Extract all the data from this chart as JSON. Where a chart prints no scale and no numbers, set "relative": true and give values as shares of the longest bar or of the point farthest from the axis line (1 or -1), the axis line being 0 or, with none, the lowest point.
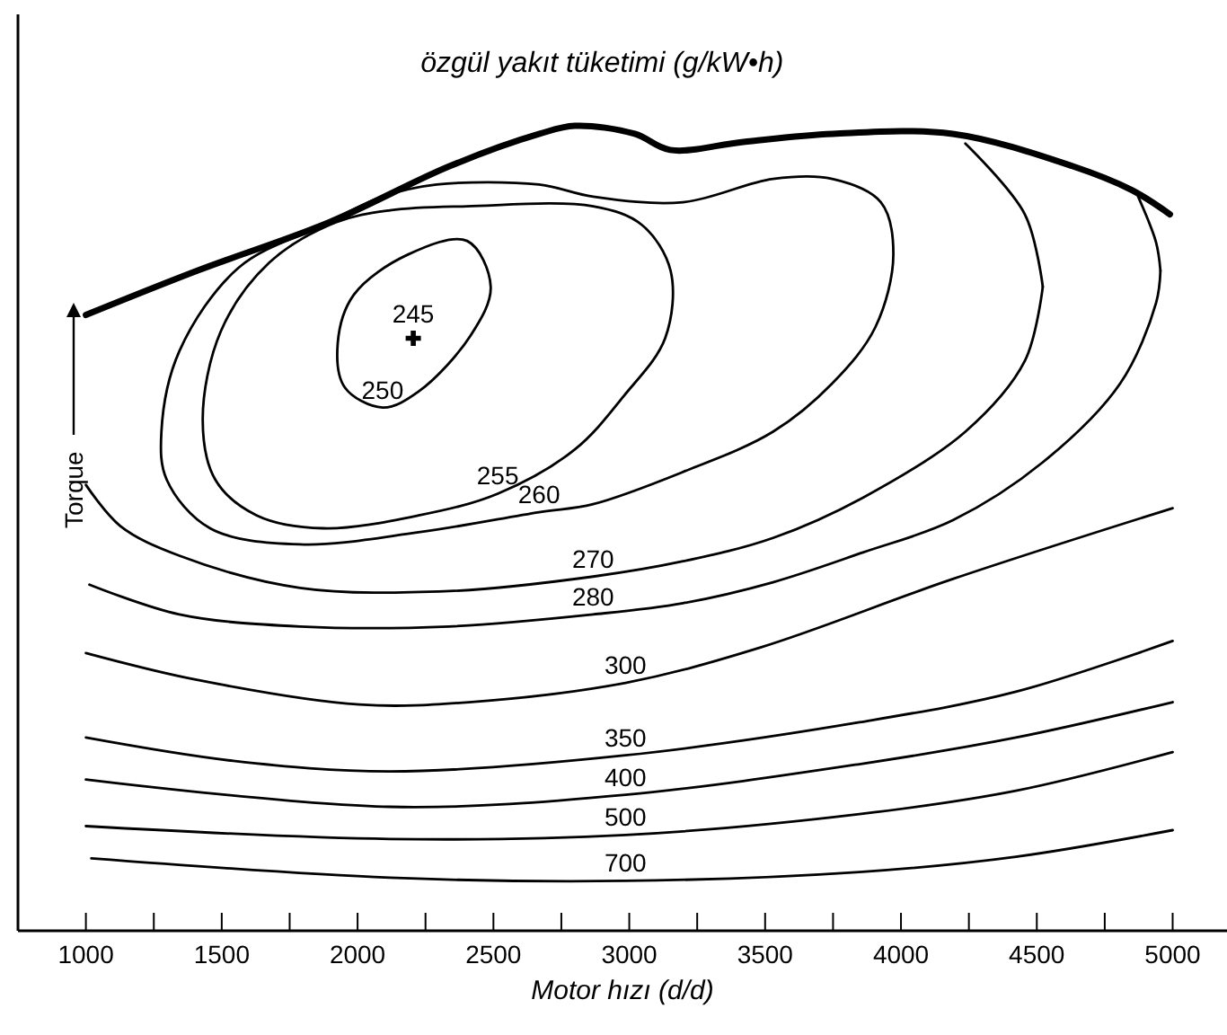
{
  "chart_data": {
    "type": "line",
    "title": "özgül yakıt tüketimi (g/kW•h)",
    "xlabel": "Motor hızı (d/d)",
    "ylabel": "Torque",
    "relative": true,
    "grid": false,
    "legend": false,
    "line_style": "solid",
    "marker": "none",
    "xlim": [
      750,
      5200
    ],
    "xticks": [
      1000,
      {
        "value": 1250,
        "label": null
      },
      1500,
      {
        "value": 1750,
        "label": null
      },
      2000,
      {
        "value": 2250,
        "label": null
      },
      2500,
      {
        "value": 2750,
        "label": null
      },
      3000,
      {
        "value": 3250,
        "label": null
      },
      3500,
      {
        "value": 3750,
        "label": null
      },
      4000,
      {
        "value": 4250,
        "label": null
      },
      4500,
      {
        "value": 4750,
        "label": null
      },
      5000
    ],
    "annotations": [
      "250",
      "255",
      "260"
    ],
    "series": [
      {
        "color": "#000000",
        "x": [
          1000,
          1410,
          1895,
          2340,
          2670,
          2800,
          3020,
          3150,
          3420,
          3750,
          4190,
          4630,
          4850,
          4990
        ],
        "values": [
          0.765,
          0.82,
          0.88,
          0.95,
          0.99,
          1.0,
          0.99,
          0.97,
          0.98,
          0.99,
          0.99,
          0.95,
          0.92,
          0.89
        ]
      },
      {
        "name": "270",
        "color": "#000000",
        "x": [
          1000,
          1126,
          1344,
          1788,
          2337,
          2867,
          3198,
          3529,
          3860,
          4237,
          4456,
          4522
        ],
        "values": [
          0.554,
          0.503,
          0.466,
          0.426,
          0.422,
          0.44,
          0.459,
          0.488,
          0.538,
          0.62,
          0.708,
          0.8
        ]
      },
      {
        "color": "#000000",
        "x": [
          4237,
          4456,
          4522
        ],
        "values": [
          0.978,
          0.89,
          0.8
        ]
      },
      {
        "name": "280",
        "color": "#000000",
        "x": [
          1013,
          1344,
          1788,
          2337,
          2867,
          3198,
          3529,
          3860,
          4191,
          4522,
          4807,
          4939,
          4955
        ],
        "values": [
          0.43,
          0.393,
          0.378,
          0.378,
          0.393,
          0.407,
          0.433,
          0.47,
          0.51,
          0.582,
          0.68,
          0.78,
          0.82
        ]
      },
      {
        "color": "#000000",
        "x": [
          4873,
          4939,
          4955
        ],
        "values": [
          0.912,
          0.855,
          0.82
        ]
      },
      {
        "name": "300",
        "color": "#000000",
        "x": [
          1000,
          1404,
          2006,
          2410,
          2986,
          3483,
          4191,
          5000
        ],
        "values": [
          0.345,
          0.312,
          0.281,
          0.284,
          0.308,
          0.352,
          0.437,
          0.525
        ]
      },
      {
        "name": "350",
        "color": "#000000",
        "x": [
          1000,
          1543,
          2119,
          2986,
          3847,
          4423,
          5000
        ],
        "values": [
          0.24,
          0.211,
          0.198,
          0.218,
          0.259,
          0.297,
          0.36
        ]
      },
      {
        "name": "400",
        "color": "#000000",
        "x": [
          1000,
          2119,
          2986,
          3847,
          4423,
          5000
        ],
        "values": [
          0.188,
          0.154,
          0.169,
          0.207,
          0.24,
          0.284
        ]
      },
      {
        "name": "500",
        "color": "#000000",
        "x": [
          1000,
          2119,
          2986,
          3847,
          4423,
          5000
        ],
        "values": [
          0.13,
          0.114,
          0.119,
          0.145,
          0.174,
          0.222
        ]
      },
      {
        "name": "700",
        "color": "#000000",
        "x": [
          1020,
          2119,
          2986,
          3847,
          4423,
          5000
        ],
        "values": [
          0.09,
          0.066,
          0.062,
          0.073,
          0.092,
          0.125
        ]
      },
      {
        "name": "245",
        "type": "scatter",
        "marker": "cross",
        "color": "#000000",
        "x": [
          2205
        ],
        "values": [
          0.736
        ]
      }
    ]
  }
}
